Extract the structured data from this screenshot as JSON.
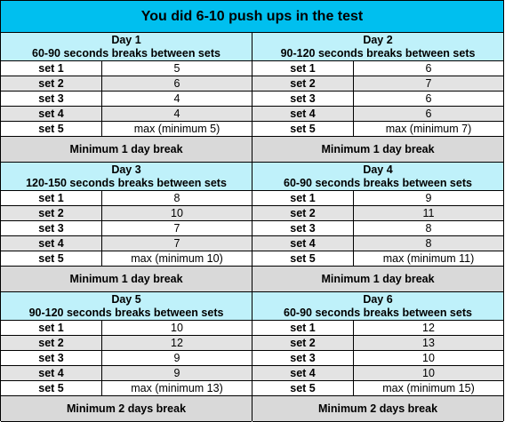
{
  "title": "You did 6-10 push ups in the test",
  "days": [
    {
      "name": "Day 1",
      "rest": "60-90 seconds breaks between sets",
      "sets": [
        {
          "label": "set 1",
          "value": "5"
        },
        {
          "label": "set 2",
          "value": "6"
        },
        {
          "label": "set 3",
          "value": "4"
        },
        {
          "label": "set 4",
          "value": "4"
        },
        {
          "label": "set 5",
          "value": "max (minimum 5)"
        }
      ],
      "break": "Minimum 1 day break"
    },
    {
      "name": "Day 2",
      "rest": "90-120 seconds breaks between sets",
      "sets": [
        {
          "label": "set 1",
          "value": "6"
        },
        {
          "label": "set 2",
          "value": "7"
        },
        {
          "label": "set 3",
          "value": "6"
        },
        {
          "label": "set 4",
          "value": "6"
        },
        {
          "label": "set 5",
          "value": "max (minimum 7)"
        }
      ],
      "break": "Minimum 1 day break"
    },
    {
      "name": "Day 3",
      "rest": "120-150 seconds breaks between sets",
      "sets": [
        {
          "label": "set 1",
          "value": "8"
        },
        {
          "label": "set 2",
          "value": "10"
        },
        {
          "label": "set 3",
          "value": "7"
        },
        {
          "label": "set 4",
          "value": "7"
        },
        {
          "label": "set 5",
          "value": "max (minimum 10)"
        }
      ],
      "break": "Minimum 1 day break"
    },
    {
      "name": "Day 4",
      "rest": "60-90 seconds breaks between sets",
      "sets": [
        {
          "label": "set 1",
          "value": "9"
        },
        {
          "label": "set 2",
          "value": "11"
        },
        {
          "label": "set 3",
          "value": "8"
        },
        {
          "label": "set 4",
          "value": "8"
        },
        {
          "label": "set 5",
          "value": "max (minimum 11)"
        }
      ],
      "break": "Minimum 1 day break"
    },
    {
      "name": "Day 5",
      "rest": "90-120 seconds breaks between sets",
      "sets": [
        {
          "label": "set 1",
          "value": "10"
        },
        {
          "label": "set 2",
          "value": "12"
        },
        {
          "label": "set 3",
          "value": "9"
        },
        {
          "label": "set 4",
          "value": "9"
        },
        {
          "label": "set 5",
          "value": "max (minimum 13)"
        }
      ],
      "break": "Minimum 2 days break"
    },
    {
      "name": "Day 6",
      "rest": "60-90 seconds breaks between sets",
      "sets": [
        {
          "label": "set 1",
          "value": "12"
        },
        {
          "label": "set 2",
          "value": "13"
        },
        {
          "label": "set 3",
          "value": "10"
        },
        {
          "label": "set 4",
          "value": "10"
        },
        {
          "label": "set 5",
          "value": "max (minimum 15)"
        }
      ],
      "break": "Minimum 2 days break"
    }
  ],
  "colors": {
    "title_bg": "#00bfef",
    "day_header_bg": "#bff1fa",
    "shaded_row_bg": "#e3e3e3",
    "break_bg": "#d9d9d9"
  }
}
